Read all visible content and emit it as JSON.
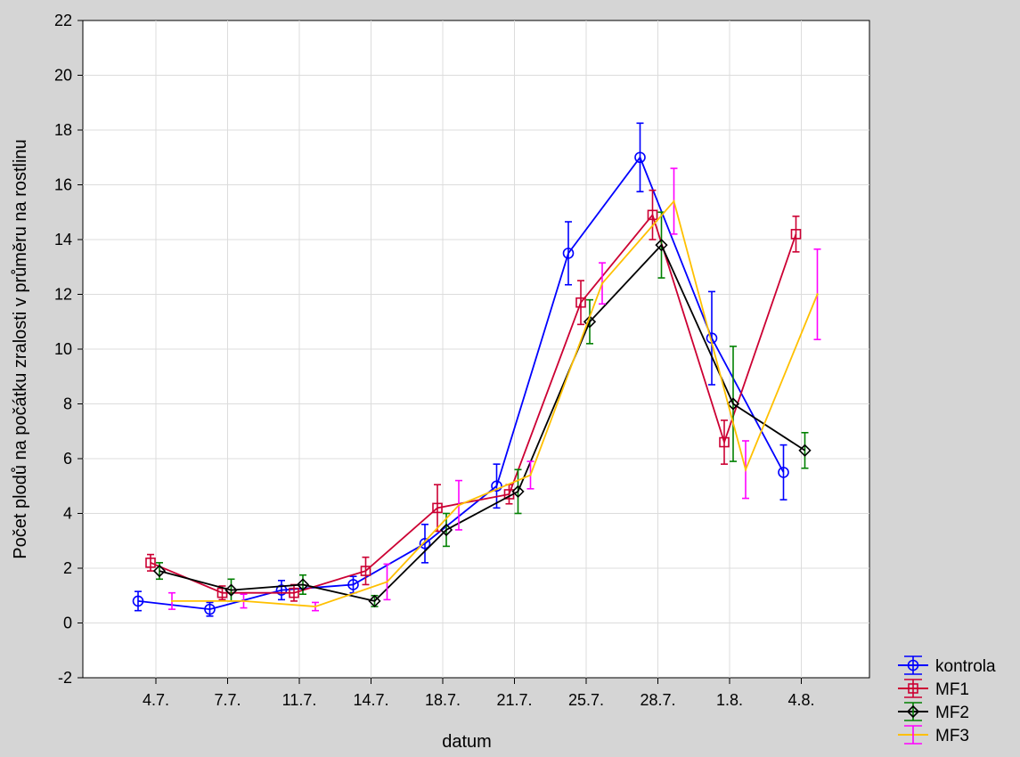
{
  "chart_data": {
    "type": "line",
    "xlabel": "datum",
    "ylabel": "Počet plodů na počátku zralosti v průměru na rostlinu",
    "categories": [
      "4.7.",
      "7.7.",
      "11.7.",
      "14.7.",
      "18.7.",
      "21.7.",
      "25.7.",
      "28.7.",
      "1.8.",
      "4.8."
    ],
    "ylim": [
      -2,
      22
    ],
    "yticks": [
      "-2",
      "0",
      "2",
      "4",
      "6",
      "8",
      "10",
      "12",
      "14",
      "16",
      "18",
      "20",
      "22"
    ],
    "grid": true,
    "legend_position": "bottom-right",
    "series": [
      {
        "name": "kontrola",
        "color": "#0000ff",
        "marker": "circle",
        "values": [
          0.8,
          0.5,
          1.2,
          1.4,
          2.9,
          5.0,
          13.5,
          17.0,
          10.4,
          5.5
        ],
        "errors": [
          0.35,
          0.25,
          0.35,
          0.3,
          0.7,
          0.8,
          1.15,
          1.25,
          1.7,
          1.0
        ]
      },
      {
        "name": "MF1",
        "color": "#cc0033",
        "marker": "square",
        "values": [
          2.2,
          1.1,
          1.1,
          1.9,
          4.2,
          4.7,
          11.7,
          14.9,
          6.6,
          14.2
        ],
        "errors": [
          0.3,
          0.25,
          0.3,
          0.5,
          0.85,
          0.35,
          0.8,
          0.9,
          0.8,
          0.65
        ]
      },
      {
        "name": "MF2",
        "color": "#000000",
        "error_color": "#008000",
        "marker": "diamond",
        "values": [
          1.9,
          1.2,
          1.4,
          0.8,
          3.4,
          4.8,
          11.0,
          13.8,
          8.0,
          6.3
        ],
        "errors": [
          0.3,
          0.4,
          0.35,
          0.2,
          0.6,
          0.8,
          0.8,
          1.2,
          2.1,
          0.65
        ]
      },
      {
        "name": "MF3",
        "color": "#ffc000",
        "error_color": "#ff00ff",
        "marker": "none",
        "values": [
          0.8,
          0.8,
          0.6,
          1.5,
          4.3,
          5.4,
          12.4,
          15.4,
          5.6,
          12.0
        ],
        "errors": [
          0.3,
          0.25,
          0.15,
          0.65,
          0.9,
          0.5,
          0.75,
          1.2,
          1.05,
          1.65
        ]
      }
    ]
  }
}
